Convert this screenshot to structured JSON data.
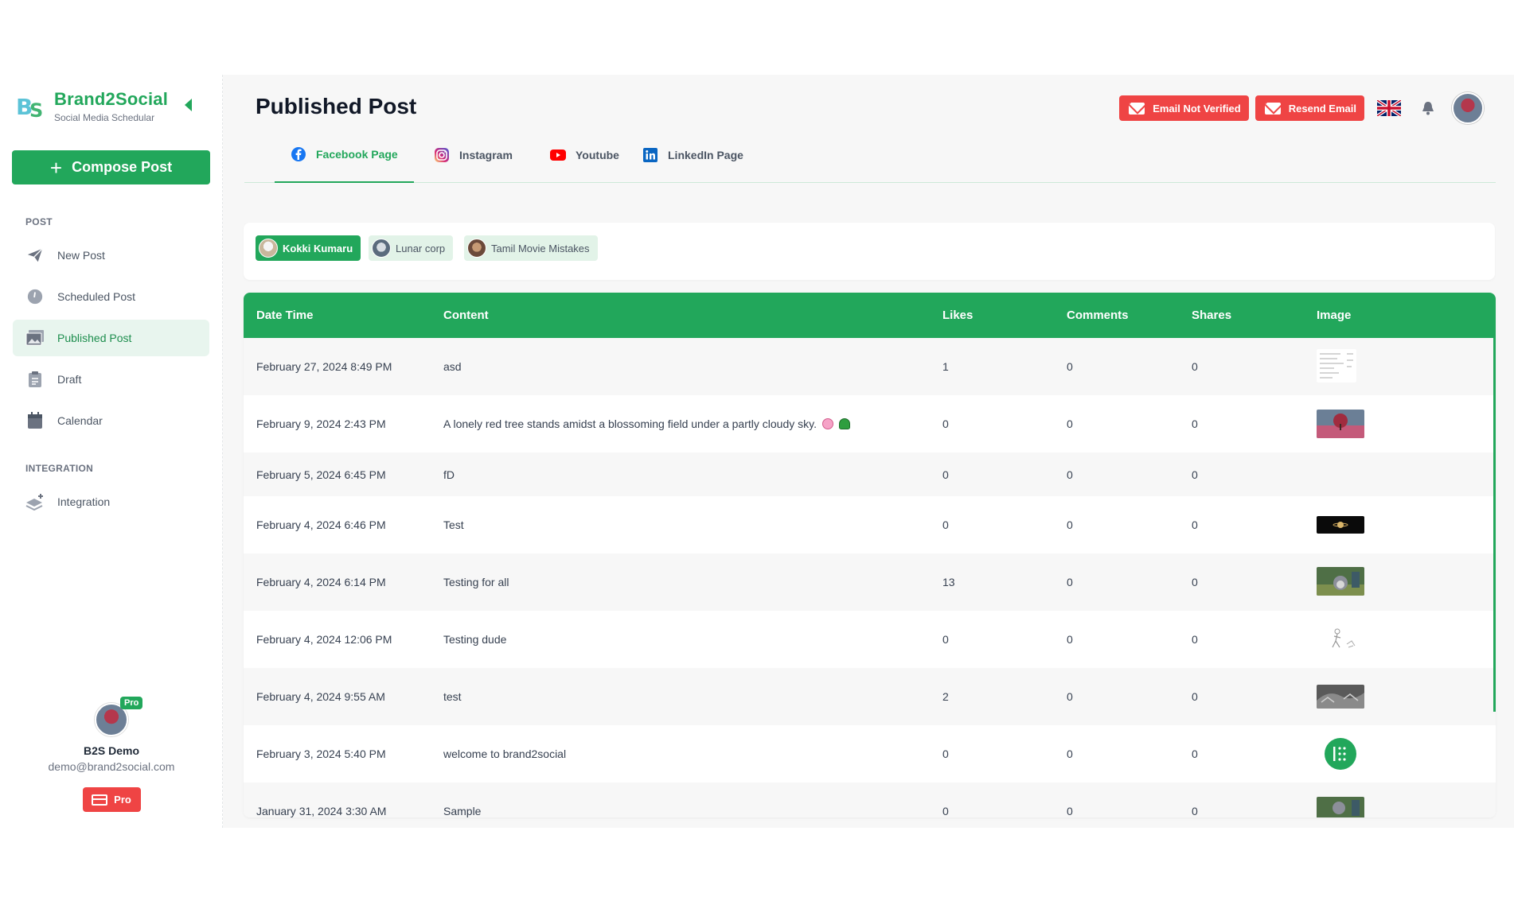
{
  "brand": {
    "title": "Brand2Social",
    "subtitle": "Social Media Schedular"
  },
  "compose_label": "Compose Post",
  "sections": {
    "post": "POST",
    "integration": "INTEGRATION"
  },
  "nav": {
    "new_post": "New Post",
    "scheduled_post": "Scheduled Post",
    "published_post": "Published Post",
    "draft": "Draft",
    "calendar": "Calendar",
    "integration": "Integration"
  },
  "profile": {
    "name": "B2S Demo",
    "email": "demo@brand2social.com",
    "badge": "Pro",
    "plan_button": "Pro"
  },
  "page_title": "Published Post",
  "header": {
    "email_not_verified": "Email Not Verified",
    "resend_email": "Resend Email"
  },
  "tabs": [
    "Facebook Page",
    "Instagram",
    "Youtube",
    "LinkedIn Page"
  ],
  "accounts": [
    "Kokki Kumaru",
    "Lunar corp",
    "Tamil Movie Mistakes"
  ],
  "table": {
    "headers": [
      "Date Time",
      "Content",
      "Likes",
      "Comments",
      "Shares",
      "Image"
    ],
    "rows": [
      {
        "datetime": "February 27, 2024 8:49 PM",
        "content": "asd",
        "likes": "1",
        "comments": "0",
        "shares": "0"
      },
      {
        "datetime": "February 9, 2024 2:43 PM",
        "content": "A lonely red tree stands amidst a blossoming field under a partly cloudy sky.",
        "likes": "0",
        "comments": "0",
        "shares": "0"
      },
      {
        "datetime": "February 5, 2024 6:45 PM",
        "content": "fD",
        "likes": "0",
        "comments": "0",
        "shares": "0"
      },
      {
        "datetime": "February 4, 2024 6:46 PM",
        "content": "Test",
        "likes": "0",
        "comments": "0",
        "shares": "0"
      },
      {
        "datetime": "February 4, 2024 6:14 PM",
        "content": "Testing for all",
        "likes": "13",
        "comments": "0",
        "shares": "0"
      },
      {
        "datetime": "February 4, 2024 12:06 PM",
        "content": "Testing dude",
        "likes": "0",
        "comments": "0",
        "shares": "0"
      },
      {
        "datetime": "February 4, 2024 9:55 AM",
        "content": "test",
        "likes": "2",
        "comments": "0",
        "shares": "0"
      },
      {
        "datetime": "February 3, 2024 5:40 PM",
        "content": "welcome to brand2social",
        "likes": "0",
        "comments": "0",
        "shares": "0"
      },
      {
        "datetime": "January 31, 2024 3:30 AM",
        "content": "Sample",
        "likes": "0",
        "comments": "0",
        "shares": "0"
      }
    ]
  },
  "colors": {
    "accent": "#22a75b",
    "danger": "#ef4444",
    "active_bg": "#e8f5ee"
  },
  "icons": {
    "logo": "b2s-logo-icon",
    "compose": "plus-icon",
    "new_post": "paper-plane-icon",
    "scheduled_post": "clock-icon",
    "published_post": "gallery-icon",
    "draft": "clipboard-icon",
    "calendar": "calendar-icon",
    "integration": "layers-plus-icon",
    "email": "mail-icon",
    "language": "uk-flag-icon",
    "notifications": "bell-icon",
    "plan": "credit-card-icon"
  }
}
